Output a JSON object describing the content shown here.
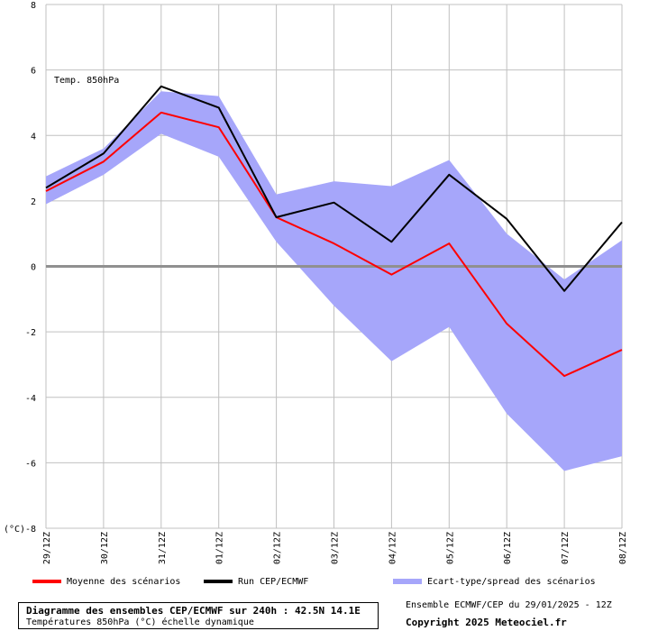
{
  "chart_data": {
    "type": "line",
    "title": "Temp. 850hPa",
    "ylabel": "(°C)",
    "ylim": [
      -8,
      8
    ],
    "yticks": [
      8,
      6,
      4,
      2,
      0,
      -2,
      -4,
      -6,
      -8
    ],
    "categories": [
      "29/12Z",
      "30/12Z",
      "31/12Z",
      "01/12Z",
      "02/12Z",
      "03/12Z",
      "04/12Z",
      "05/12Z",
      "06/12Z",
      "07/12Z",
      "08/12Z"
    ],
    "series": [
      {
        "name": "Moyenne des scénarios",
        "color": "#ff0000",
        "values": [
          2.3,
          3.2,
          4.7,
          4.25,
          1.5,
          0.7,
          -0.25,
          0.7,
          -1.75,
          -3.35,
          -2.55
        ]
      },
      {
        "name": "Run CEP/ECMWF",
        "color": "#000000",
        "values": [
          2.4,
          3.45,
          5.5,
          4.85,
          1.5,
          1.95,
          0.75,
          2.8,
          1.45,
          -0.75,
          1.35
        ]
      }
    ],
    "band": {
      "name": "Ecart-type/spread des scénarios",
      "color": "#a6a6fa",
      "upper": [
        2.75,
        3.6,
        5.35,
        5.2,
        2.2,
        2.6,
        2.45,
        3.25,
        1.0,
        -0.4,
        0.8
      ],
      "lower": [
        1.9,
        2.8,
        4.05,
        3.35,
        0.75,
        -1.2,
        -2.9,
        -1.85,
        -4.5,
        -6.25,
        -5.8
      ]
    }
  },
  "footer": {
    "title": "Diagramme des ensembles CEP/ECMWF sur 240h : 42.5N 14.1E",
    "subtitle": "Températures 850hPa (°C) échelle dynamique",
    "run_info": "Ensemble ECMWF/CEP du 29/01/2025 - 12Z",
    "copyright": "Copyright 2025 Meteociel.fr"
  }
}
